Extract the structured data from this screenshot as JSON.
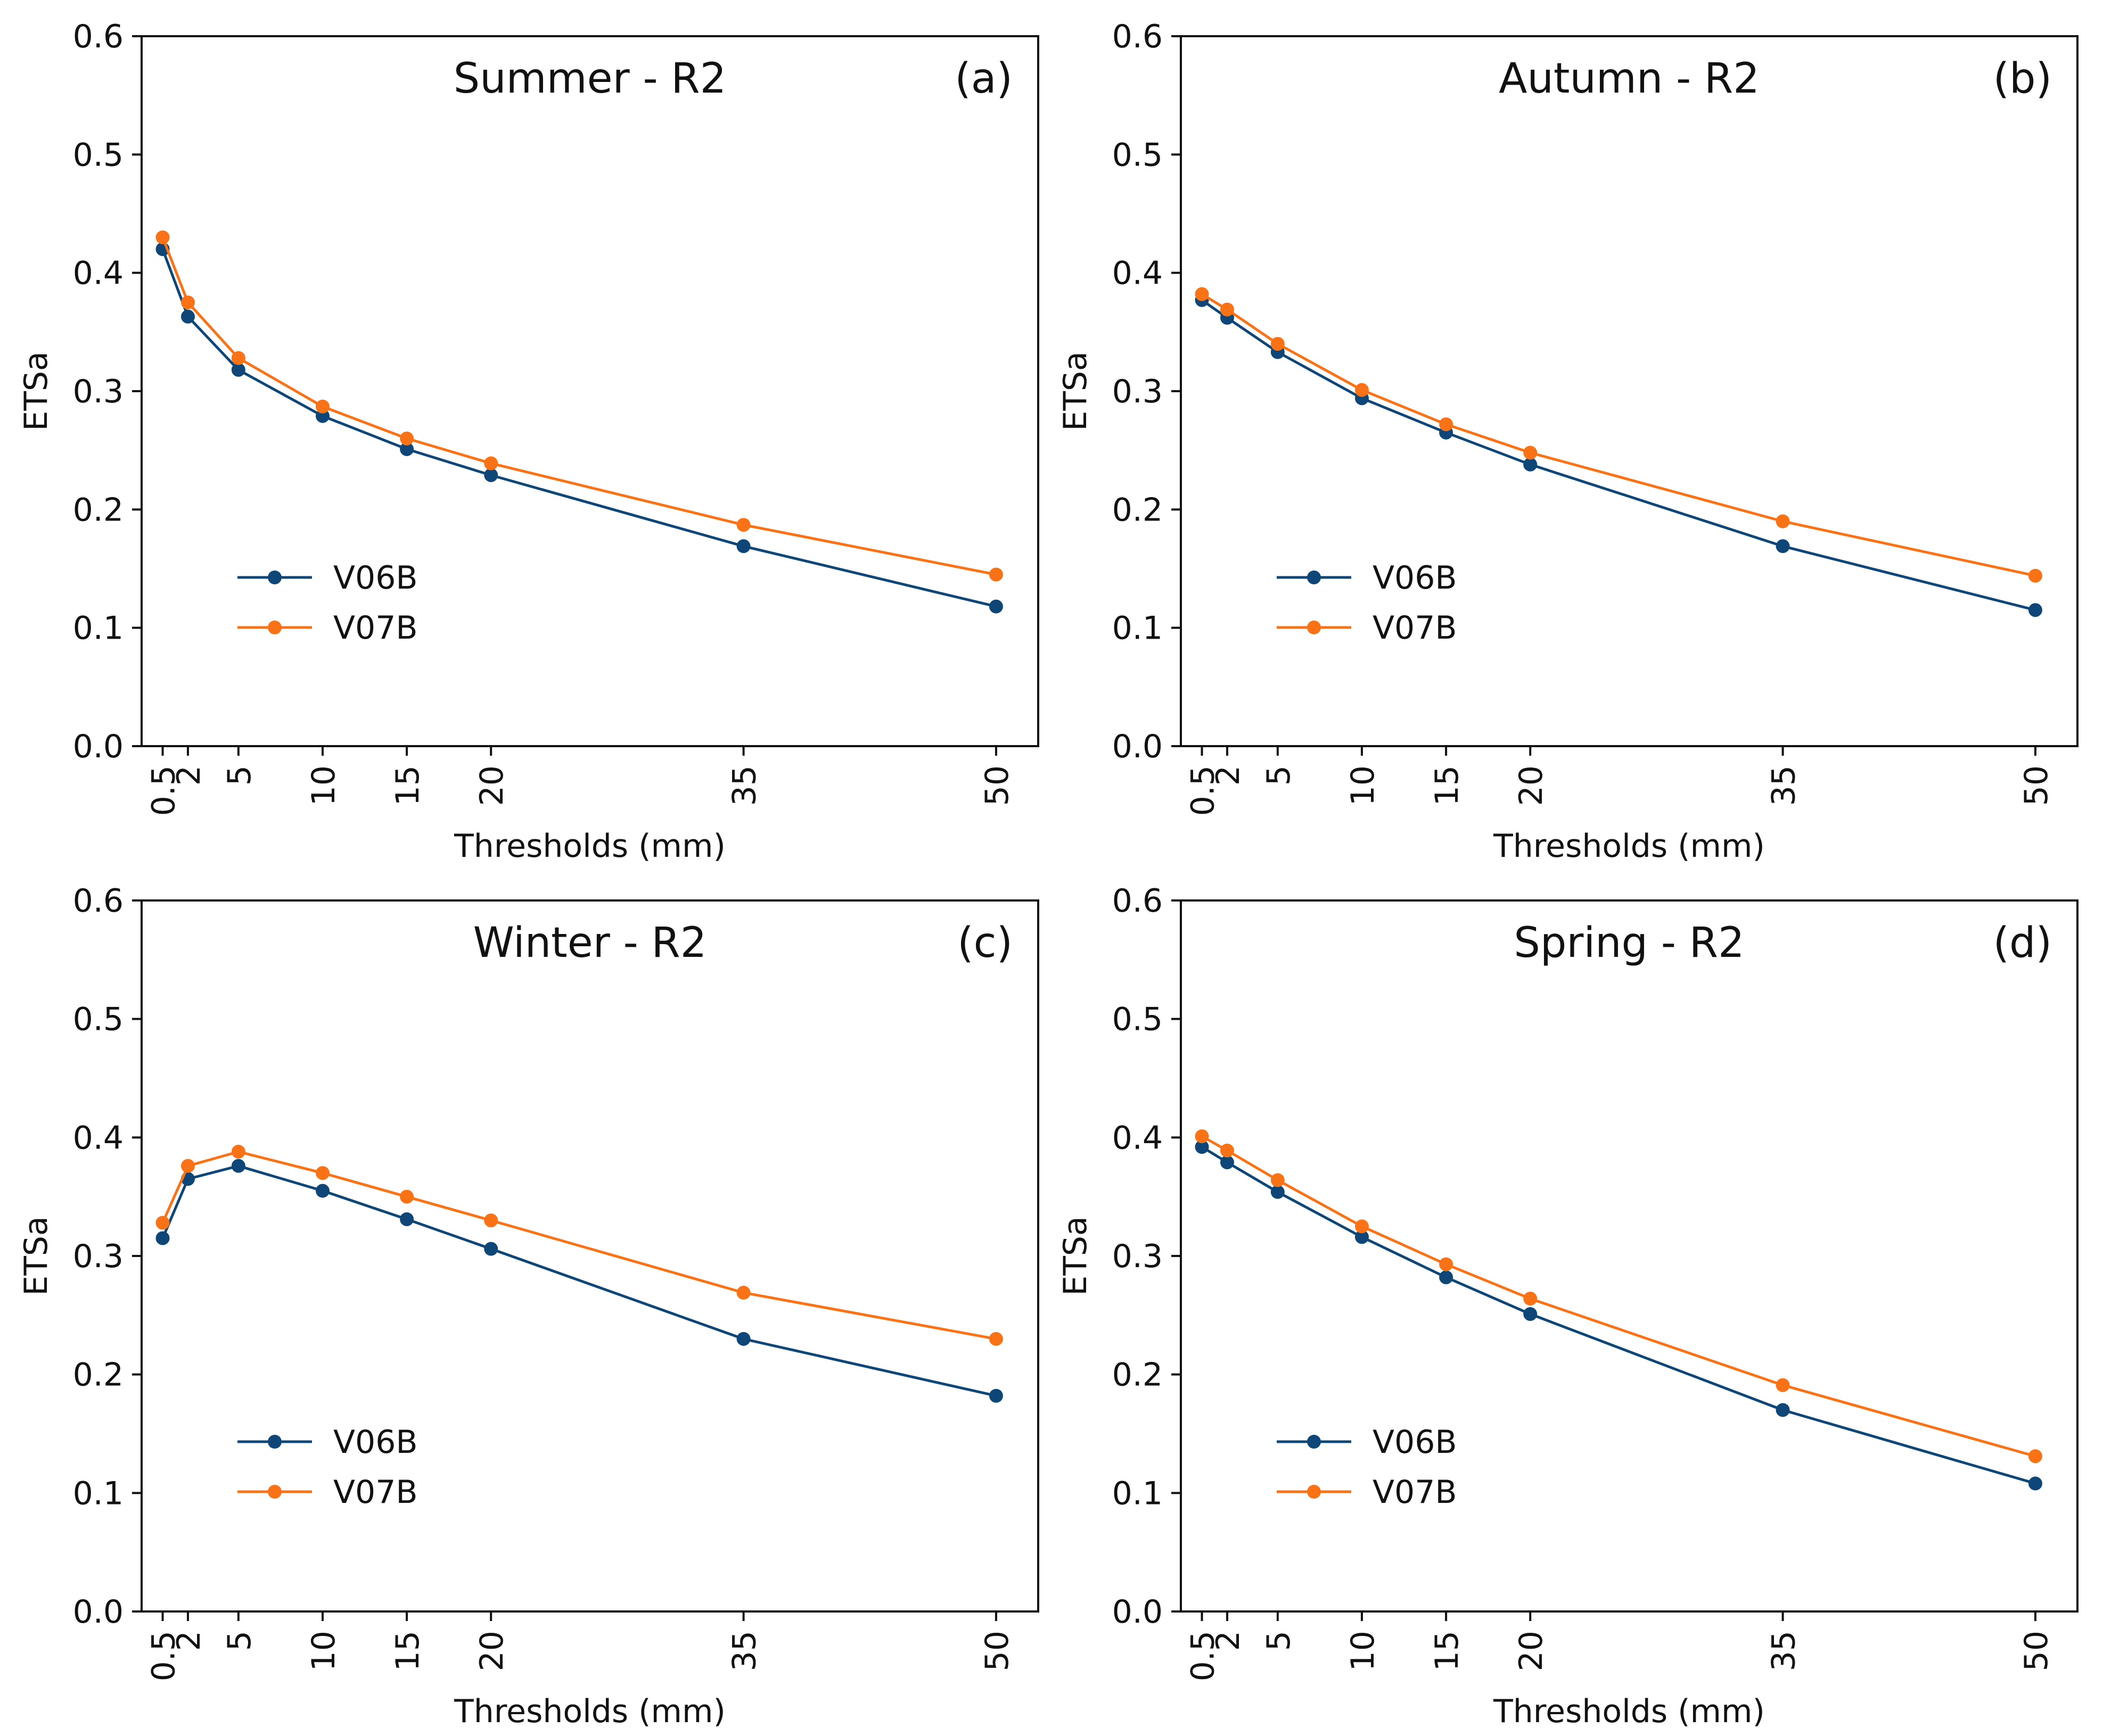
{
  "colors": {
    "V06B": "#0e4777",
    "V07B": "#f97316",
    "axis": "#111111"
  },
  "chart_data": [
    {
      "type": "line",
      "title": "Summer - R2",
      "panel_label": "(a)",
      "xlabel": "Thresholds (mm)",
      "ylabel": "ETSa",
      "x": [
        0.5,
        2,
        5,
        10,
        15,
        20,
        35,
        50
      ],
      "x_tick_labels": [
        "0.5",
        "2",
        "5",
        "10",
        "15",
        "20",
        "35",
        "50"
      ],
      "xlim": [
        -0.75,
        52.5
      ],
      "ylim": [
        0.0,
        0.6
      ],
      "y_ticks": [
        0.0,
        0.1,
        0.2,
        0.3,
        0.4,
        0.5,
        0.6
      ],
      "y_tick_labels": [
        "0.0",
        "0.1",
        "0.2",
        "0.3",
        "0.4",
        "0.5",
        "0.6"
      ],
      "legend_position": "lower-left",
      "series": [
        {
          "name": "V06B",
          "values": [
            0.42,
            0.363,
            0.318,
            0.279,
            0.251,
            0.229,
            0.169,
            0.118
          ]
        },
        {
          "name": "V07B",
          "values": [
            0.43,
            0.375,
            0.328,
            0.287,
            0.26,
            0.239,
            0.187,
            0.145
          ]
        }
      ]
    },
    {
      "type": "line",
      "title": "Autumn - R2",
      "panel_label": "(b)",
      "xlabel": "Thresholds (mm)",
      "ylabel": "ETSa",
      "x": [
        0.5,
        2,
        5,
        10,
        15,
        20,
        35,
        50
      ],
      "x_tick_labels": [
        "0.5",
        "2",
        "5",
        "10",
        "15",
        "20",
        "35",
        "50"
      ],
      "xlim": [
        -0.75,
        52.5
      ],
      "ylim": [
        0.0,
        0.6
      ],
      "y_ticks": [
        0.0,
        0.1,
        0.2,
        0.3,
        0.4,
        0.5,
        0.6
      ],
      "y_tick_labels": [
        "0.0",
        "0.1",
        "0.2",
        "0.3",
        "0.4",
        "0.5",
        "0.6"
      ],
      "legend_position": "lower-left",
      "series": [
        {
          "name": "V06B",
          "values": [
            0.377,
            0.362,
            0.333,
            0.294,
            0.265,
            0.238,
            0.169,
            0.115
          ]
        },
        {
          "name": "V07B",
          "values": [
            0.382,
            0.369,
            0.34,
            0.301,
            0.272,
            0.248,
            0.19,
            0.144
          ]
        }
      ]
    },
    {
      "type": "line",
      "title": "Winter - R2",
      "panel_label": "(c)",
      "xlabel": "Thresholds (mm)",
      "ylabel": "ETSa",
      "x": [
        0.5,
        2,
        5,
        10,
        15,
        20,
        35,
        50
      ],
      "x_tick_labels": [
        "0.5",
        "2",
        "5",
        "10",
        "15",
        "20",
        "35",
        "50"
      ],
      "xlim": [
        -0.75,
        52.5
      ],
      "ylim": [
        0.0,
        0.6
      ],
      "y_ticks": [
        0.0,
        0.1,
        0.2,
        0.3,
        0.4,
        0.5,
        0.6
      ],
      "y_tick_labels": [
        "0.0",
        "0.1",
        "0.2",
        "0.3",
        "0.4",
        "0.5",
        "0.6"
      ],
      "legend_position": "lower-left",
      "series": [
        {
          "name": "V06B",
          "values": [
            0.315,
            0.365,
            0.376,
            0.355,
            0.331,
            0.306,
            0.23,
            0.182
          ]
        },
        {
          "name": "V07B",
          "values": [
            0.328,
            0.376,
            0.388,
            0.37,
            0.35,
            0.33,
            0.269,
            0.23
          ]
        }
      ]
    },
    {
      "type": "line",
      "title": "Spring - R2",
      "panel_label": "(d)",
      "xlabel": "Thresholds (mm)",
      "ylabel": "ETSa",
      "x": [
        0.5,
        2,
        5,
        10,
        15,
        20,
        35,
        50
      ],
      "x_tick_labels": [
        "0.5",
        "2",
        "5",
        "10",
        "15",
        "20",
        "35",
        "50"
      ],
      "xlim": [
        -0.75,
        52.5
      ],
      "ylim": [
        0.0,
        0.6
      ],
      "y_ticks": [
        0.0,
        0.1,
        0.2,
        0.3,
        0.4,
        0.5,
        0.6
      ],
      "y_tick_labels": [
        "0.0",
        "0.1",
        "0.2",
        "0.3",
        "0.4",
        "0.5",
        "0.6"
      ],
      "legend_position": "lower-left",
      "series": [
        {
          "name": "V06B",
          "values": [
            0.392,
            0.379,
            0.354,
            0.316,
            0.282,
            0.251,
            0.17,
            0.108
          ]
        },
        {
          "name": "V07B",
          "values": [
            0.401,
            0.389,
            0.364,
            0.325,
            0.293,
            0.264,
            0.191,
            0.131
          ]
        }
      ]
    }
  ]
}
